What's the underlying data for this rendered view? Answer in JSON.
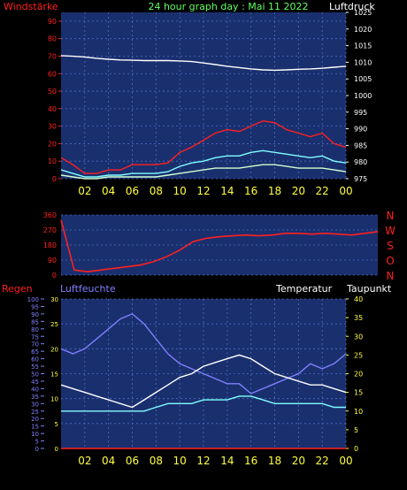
{
  "header": {
    "windstaerke": "Windstärke",
    "title": "24 hour graph day : Mai 11 2022",
    "luftdruck": "Luftdruck"
  },
  "x_ticks": [
    "02",
    "04",
    "06",
    "08",
    "10",
    "12",
    "14",
    "16",
    "18",
    "20",
    "22",
    "00"
  ],
  "panel2": {
    "y_ticks": [
      "360",
      "270",
      "180",
      "90",
      "0"
    ],
    "dir_labels": [
      "N",
      "W",
      "S",
      "O",
      "N"
    ]
  },
  "panel3": {
    "regen": "Regen",
    "luftfeuchte": "Luftfeuchte",
    "temperatur": "Temperatur",
    "taupunkt": "Taupunkt",
    "rain_ticks": [
      "100",
      "95",
      "90",
      "85",
      "80",
      "75",
      "70",
      "65",
      "60",
      "55",
      "50",
      "45",
      "40",
      "35",
      "30",
      "25",
      "20",
      "15",
      "10",
      "5",
      "0"
    ],
    "hum_ticks": [
      "30",
      "25",
      "20",
      "15",
      "10",
      "5",
      "0"
    ],
    "temp_ticks": [
      "40",
      "35",
      "30",
      "25",
      "20",
      "15",
      "10",
      "5",
      "0"
    ]
  },
  "colors": {
    "wind_axis": "#ff2020",
    "gust": "#ff2020",
    "wind_avg": "#80ffff",
    "wind_low": "#d0ffd0",
    "pressure": "#ffffff",
    "humidity": "#8080ff",
    "temperature": "#ffffff",
    "dewpoint": "#80ffff",
    "panel_bg": "#1a2f6e"
  },
  "chart_data": [
    {
      "type": "line",
      "title": "24 hour graph day : Mai 11 2022",
      "ylabel": "Windstärke",
      "y2label": "Luftdruck",
      "ylim": [
        0,
        95
      ],
      "y2lim": [
        975,
        1025
      ],
      "y_ticks": [
        0,
        10,
        20,
        30,
        40,
        50,
        60,
        70,
        80,
        90
      ],
      "y2_ticks": [
        975,
        980,
        985,
        990,
        995,
        1000,
        1005,
        1010,
        1015,
        1020,
        1025
      ],
      "x": [
        0,
        1,
        2,
        3,
        4,
        5,
        6,
        7,
        8,
        9,
        10,
        11,
        12,
        13,
        14,
        15,
        16,
        17,
        18,
        19,
        20,
        21,
        22,
        23,
        24
      ],
      "series": [
        {
          "name": "Luftdruck",
          "axis": "right",
          "values": [
            1012,
            1011.8,
            1011.6,
            1011.2,
            1010.9,
            1010.7,
            1010.6,
            1010.5,
            1010.5,
            1010.5,
            1010.4,
            1010.2,
            1009.8,
            1009.3,
            1008.8,
            1008.4,
            1008.0,
            1007.7,
            1007.6,
            1007.7,
            1007.9,
            1008.0,
            1008.2,
            1008.5,
            1008.8
          ]
        },
        {
          "name": "Gust",
          "axis": "left",
          "values": [
            12,
            8,
            3,
            3,
            5,
            5,
            8,
            8,
            8,
            9,
            15,
            18,
            22,
            26,
            28,
            27,
            30,
            33,
            32,
            28,
            26,
            24,
            26,
            20,
            18
          ]
        },
        {
          "name": "Wind",
          "axis": "left",
          "values": [
            5,
            3,
            1,
            1,
            2,
            2,
            3,
            3,
            3,
            4,
            7,
            9,
            10,
            12,
            13,
            13,
            15,
            16,
            15,
            14,
            13,
            12,
            13,
            10,
            9
          ]
        },
        {
          "name": "Wind low",
          "axis": "left",
          "values": [
            2,
            1,
            0,
            0,
            1,
            1,
            1,
            1,
            1,
            2,
            3,
            4,
            5,
            6,
            6,
            6,
            7,
            8,
            8,
            7,
            6,
            6,
            6,
            5,
            4
          ]
        }
      ]
    },
    {
      "type": "line",
      "ylim": [
        0,
        360
      ],
      "y_ticks": [
        0,
        90,
        180,
        270,
        360
      ],
      "x": [
        0,
        1,
        2,
        3,
        4,
        5,
        6,
        7,
        8,
        9,
        10,
        11,
        12,
        13,
        14,
        15,
        16,
        17,
        18,
        19,
        20,
        21,
        22,
        23,
        24
      ],
      "series": [
        {
          "name": "Windrichtung",
          "values": [
            330,
            30,
            20,
            30,
            40,
            50,
            60,
            80,
            110,
            150,
            200,
            220,
            230,
            235,
            240,
            235,
            240,
            250,
            250,
            245,
            250,
            245,
            240,
            250,
            260
          ]
        }
      ]
    },
    {
      "type": "line",
      "rain_ylim": [
        0,
        100
      ],
      "hum_ylim": [
        0,
        30
      ],
      "temp_ylim": [
        0,
        40
      ],
      "x": [
        0,
        1,
        2,
        3,
        4,
        5,
        6,
        7,
        8,
        9,
        10,
        11,
        12,
        13,
        14,
        15,
        16,
        17,
        18,
        19,
        20,
        21,
        22,
        23,
        24
      ],
      "series": [
        {
          "name": "Luftfeuchte",
          "axis": "hum",
          "values": [
            20,
            19,
            20,
            22,
            24,
            26,
            27,
            25,
            22,
            19,
            17,
            16,
            15,
            14,
            13,
            13,
            11,
            12,
            13,
            14,
            15,
            17,
            16,
            17,
            19
          ]
        },
        {
          "name": "Temperatur",
          "axis": "temp",
          "values": [
            17,
            16,
            15,
            14,
            13,
            12,
            11,
            13,
            15,
            17,
            19,
            20,
            22,
            23,
            24,
            25,
            24,
            22,
            20,
            19,
            18,
            17,
            17,
            16,
            15
          ]
        },
        {
          "name": "Taupunkt",
          "axis": "temp",
          "values": [
            10,
            10,
            10,
            10,
            10,
            10,
            10,
            10,
            11,
            12,
            12,
            12,
            13,
            13,
            13,
            14,
            14,
            13,
            12,
            12,
            12,
            12,
            12,
            11,
            11
          ]
        },
        {
          "name": "Regen",
          "axis": "rain",
          "values": [
            0,
            0,
            0,
            0,
            0,
            0,
            0,
            0,
            0,
            0,
            0,
            0,
            0,
            0,
            0,
            0,
            0,
            0,
            0,
            0,
            0,
            0,
            0,
            0,
            0
          ]
        }
      ]
    }
  ]
}
